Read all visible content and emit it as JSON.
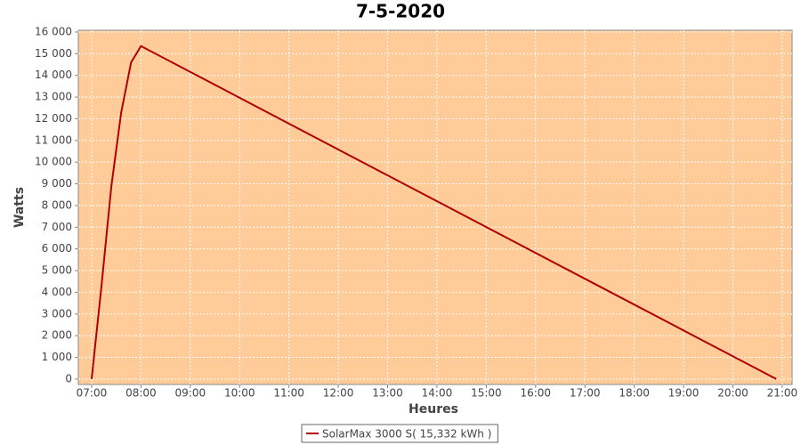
{
  "chart_data": {
    "type": "line",
    "title": "7-5-2020",
    "x_label": "Heures",
    "y_label": "Watts",
    "x": [
      7.0,
      7.2,
      7.4,
      7.6,
      7.8,
      8.0,
      20.88
    ],
    "series": [
      {
        "name": "SolarMax 3000 S( 15,332 kWh )",
        "color": "#b00000",
        "values": [
          0,
          4300,
          8900,
          12300,
          14600,
          15350,
          0
        ]
      }
    ],
    "xlim": [
      6.73,
      21.2
    ],
    "xticks": [
      {
        "value": 7,
        "label": "07:00"
      },
      {
        "value": 8,
        "label": "08:00"
      },
      {
        "value": 9,
        "label": "09:00"
      },
      {
        "value": 10,
        "label": "10:00"
      },
      {
        "value": 11,
        "label": "11:00"
      },
      {
        "value": 12,
        "label": "12:00"
      },
      {
        "value": 13,
        "label": "13:00"
      },
      {
        "value": 14,
        "label": "14:00"
      },
      {
        "value": 15,
        "label": "15:00"
      },
      {
        "value": 16,
        "label": "16:00"
      },
      {
        "value": 17,
        "label": "17:00"
      },
      {
        "value": 18,
        "label": "18:00"
      },
      {
        "value": 19,
        "label": "19:00"
      },
      {
        "value": 20,
        "label": "20:00"
      },
      {
        "value": 21,
        "label": "21:00"
      }
    ],
    "ylim": [
      -250,
      16080
    ],
    "yticks": [
      0,
      {
        "value": 1000,
        "label": "1 000"
      },
      {
        "value": 2000,
        "label": "2 000"
      },
      {
        "value": 3000,
        "label": "3 000"
      },
      {
        "value": 4000,
        "label": "4 000"
      },
      {
        "value": 5000,
        "label": "5 000"
      },
      {
        "value": 6000,
        "label": "6 000"
      },
      {
        "value": 7000,
        "label": "7 000"
      },
      {
        "value": 8000,
        "label": "8 000"
      },
      {
        "value": 9000,
        "label": "9 000"
      },
      {
        "value": 10000,
        "label": "10 000"
      },
      {
        "value": 11000,
        "label": "11 000"
      },
      {
        "value": 12000,
        "label": "12 000"
      },
      {
        "value": 13000,
        "label": "13 000"
      },
      {
        "value": 14000,
        "label": "14 000"
      },
      {
        "value": 15000,
        "label": "15 000"
      },
      {
        "value": 16000,
        "label": "16 000"
      }
    ],
    "grid": true,
    "background": "#ffcc99",
    "legend": "bottom"
  }
}
